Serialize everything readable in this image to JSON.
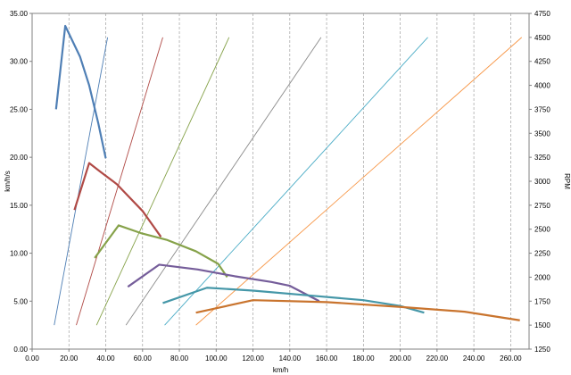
{
  "chart_data": {
    "type": "line",
    "title": "",
    "xlabel": "km/h",
    "ylabel_left": "km/h/s",
    "ylabel_right": "RPM",
    "xlim": [
      0,
      270
    ],
    "ylim_left": [
      0,
      35
    ],
    "ylim_right": [
      1250,
      4750
    ],
    "x_ticks": [
      "0.00",
      "20.00",
      "40.00",
      "60.00",
      "80.00",
      "100.00",
      "120.00",
      "140.00",
      "160.00",
      "180.00",
      "200.00",
      "220.00",
      "240.00",
      "260.00"
    ],
    "y_left_ticks": [
      "0.00",
      "5.00",
      "10.00",
      "15.00",
      "20.00",
      "25.00",
      "30.00",
      "35.00"
    ],
    "y_right_ticks": [
      "1250",
      "1500",
      "1750",
      "2000",
      "2250",
      "2500",
      "2750",
      "3000",
      "3250",
      "3500",
      "3750",
      "4000",
      "4250",
      "4500",
      "4750"
    ],
    "grid": {
      "vertical": true,
      "horizontal": false
    },
    "legend": "none",
    "acceleration_series": [
      {
        "color": "#4f7fb5",
        "axis": "left",
        "points": [
          [
            13,
            25.0
          ],
          [
            18,
            33.7
          ],
          [
            26,
            30.5
          ],
          [
            31,
            27.5
          ],
          [
            36,
            23.5
          ],
          [
            40,
            19.9
          ]
        ]
      },
      {
        "color": "#b04a46",
        "axis": "left",
        "points": [
          [
            23,
            14.5
          ],
          [
            31,
            19.4
          ],
          [
            37,
            18.5
          ],
          [
            46,
            17.2
          ],
          [
            60,
            14.4
          ],
          [
            70,
            11.7
          ]
        ]
      },
      {
        "color": "#86a24a",
        "axis": "left",
        "points": [
          [
            34,
            9.5
          ],
          [
            47,
            12.9
          ],
          [
            59,
            12.1
          ],
          [
            73,
            11.4
          ],
          [
            89,
            10.2
          ],
          [
            101,
            8.9
          ],
          [
            106,
            7.5
          ]
        ]
      },
      {
        "color": "#755d9a",
        "axis": "left",
        "points": [
          [
            52,
            6.5
          ],
          [
            69,
            8.8
          ],
          [
            90,
            8.3
          ],
          [
            110,
            7.6
          ],
          [
            130,
            7.0
          ],
          [
            140,
            6.6
          ],
          [
            156,
            5.0
          ]
        ]
      },
      {
        "color": "#4597a8",
        "axis": "left",
        "points": [
          [
            71,
            4.8
          ],
          [
            95,
            6.4
          ],
          [
            120,
            6.1
          ],
          [
            150,
            5.6
          ],
          [
            180,
            5.1
          ],
          [
            200,
            4.5
          ],
          [
            213,
            3.8
          ]
        ]
      },
      {
        "color": "#c9742e",
        "axis": "left",
        "points": [
          [
            89,
            3.8
          ],
          [
            120,
            5.1
          ],
          [
            160,
            4.9
          ],
          [
            200,
            4.4
          ],
          [
            235,
            3.9
          ],
          [
            265,
            3.0
          ]
        ]
      }
    ],
    "rpm_series": [
      {
        "color": "#4f7fb5",
        "axis": "right",
        "points": [
          [
            12,
            1500
          ],
          [
            41,
            4500
          ]
        ]
      },
      {
        "color": "#b04a46",
        "axis": "right",
        "points": [
          [
            24,
            1500
          ],
          [
            71,
            4500
          ]
        ]
      },
      {
        "color": "#86a24a",
        "axis": "right",
        "points": [
          [
            35,
            1500
          ],
          [
            107,
            4500
          ]
        ]
      },
      {
        "color": "#8a8a8a",
        "axis": "right",
        "points": [
          [
            51,
            1500
          ],
          [
            157,
            4500
          ]
        ]
      },
      {
        "color": "#4bacc6",
        "axis": "right",
        "points": [
          [
            72,
            1500
          ],
          [
            215,
            4500
          ]
        ]
      },
      {
        "color": "#f79646",
        "axis": "right",
        "points": [
          [
            89,
            1500
          ],
          [
            266,
            4500
          ]
        ]
      }
    ]
  }
}
